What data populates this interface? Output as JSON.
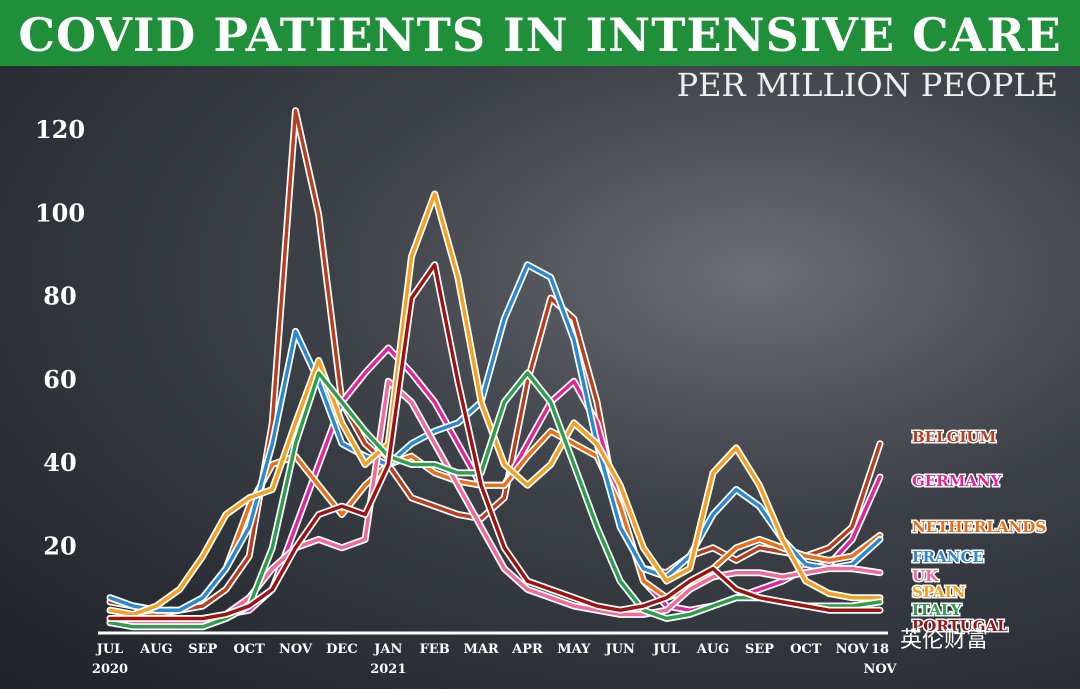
{
  "chart_data": {
    "type": "line",
    "title": "COVID PATIENTS IN INTENSIVE CARE",
    "subtitle": "PER MILLION PEOPLE",
    "watermark": "英伦财富",
    "x": [
      0,
      0.5,
      1,
      1.5,
      2,
      2.5,
      3,
      3.5,
      4,
      4.5,
      5,
      5.5,
      6,
      6.5,
      7,
      7.5,
      8,
      8.5,
      9,
      9.5,
      10,
      10.5,
      11,
      11.5,
      12,
      12.5,
      13,
      13.5,
      14,
      14.5,
      15,
      15.5,
      16,
      16.6
    ],
    "xlim": [
      0,
      16.6
    ],
    "xticks": [
      {
        "value": 0,
        "label": "JUL\n2020"
      },
      {
        "value": 1,
        "label": "AUG"
      },
      {
        "value": 2,
        "label": "SEP"
      },
      {
        "value": 3,
        "label": "OCT"
      },
      {
        "value": 4,
        "label": "NOV"
      },
      {
        "value": 5,
        "label": "DEC"
      },
      {
        "value": 6,
        "label": "JAN\n2021"
      },
      {
        "value": 7,
        "label": "FEB"
      },
      {
        "value": 8,
        "label": "MAR"
      },
      {
        "value": 9,
        "label": "APR"
      },
      {
        "value": 10,
        "label": "MAY"
      },
      {
        "value": 11,
        "label": "JUN"
      },
      {
        "value": 12,
        "label": "JUL"
      },
      {
        "value": 13,
        "label": "AUG"
      },
      {
        "value": 14,
        "label": "SEP"
      },
      {
        "value": 15,
        "label": "OCT"
      },
      {
        "value": 16,
        "label": "NOV"
      },
      {
        "value": 16.6,
        "label": "18\nNOV"
      }
    ],
    "ylim": [
      0,
      130
    ],
    "yticks": [
      20,
      40,
      60,
      80,
      100,
      120
    ],
    "grid": false,
    "series": [
      {
        "name": "BELGIUM",
        "color": "#b5401f",
        "values": [
          7,
          6,
          5,
          5,
          6,
          10,
          18,
          50,
          125,
          100,
          55,
          45,
          40,
          32,
          30,
          28,
          27,
          32,
          60,
          80,
          75,
          55,
          25,
          15,
          14,
          18,
          20,
          17,
          20,
          19,
          18,
          20,
          25,
          45
        ]
      },
      {
        "name": "GERMANY",
        "color": "#e0269c",
        "values": [
          3,
          3,
          3,
          3,
          3,
          4,
          5,
          10,
          25,
          40,
          55,
          62,
          68,
          62,
          55,
          45,
          35,
          35,
          45,
          55,
          60,
          50,
          30,
          12,
          6,
          5,
          6,
          8,
          10,
          12,
          15,
          16,
          22,
          37
        ]
      },
      {
        "name": "NETHERLANDS",
        "color": "#e8701a",
        "values": [
          2,
          3,
          4,
          5,
          8,
          15,
          30,
          40,
          42,
          35,
          28,
          35,
          40,
          42,
          38,
          36,
          35,
          35,
          42,
          48,
          45,
          42,
          30,
          12,
          8,
          10,
          15,
          20,
          22,
          20,
          18,
          17,
          18,
          23
        ]
      },
      {
        "name": "FRANCE",
        "color": "#2a8ad0",
        "values": [
          8,
          6,
          5,
          5,
          8,
          15,
          25,
          45,
          72,
          60,
          45,
          42,
          40,
          45,
          48,
          50,
          55,
          75,
          88,
          85,
          70,
          45,
          25,
          15,
          13,
          18,
          28,
          34,
          30,
          22,
          16,
          15,
          16,
          22
        ]
      },
      {
        "name": "UK",
        "color": "#f06a9a",
        "values": [
          3,
          2,
          2,
          2,
          2,
          4,
          8,
          15,
          20,
          22,
          20,
          22,
          60,
          55,
          45,
          35,
          25,
          15,
          10,
          8,
          6,
          5,
          4,
          4,
          5,
          10,
          13,
          14,
          14,
          13,
          14,
          15,
          15,
          14
        ]
      },
      {
        "name": "SPAIN",
        "color": "#f4a020",
        "values": [
          5,
          4,
          6,
          10,
          18,
          28,
          32,
          34,
          50,
          65,
          50,
          40,
          45,
          90,
          105,
          85,
          55,
          40,
          35,
          40,
          50,
          45,
          35,
          20,
          12,
          15,
          38,
          44,
          35,
          22,
          12,
          9,
          8,
          8
        ]
      },
      {
        "name": "ITALY",
        "color": "#2e9e4e",
        "values": [
          2,
          1,
          1,
          1,
          1,
          3,
          6,
          20,
          45,
          62,
          55,
          48,
          42,
          40,
          40,
          38,
          38,
          55,
          62,
          55,
          40,
          25,
          12,
          5,
          3,
          4,
          6,
          8,
          8,
          7,
          6,
          6,
          6,
          7
        ]
      },
      {
        "name": "PORTUGAL",
        "color": "#9b1414",
        "values": [
          3,
          3,
          3,
          3,
          3,
          4,
          6,
          10,
          20,
          28,
          30,
          28,
          40,
          80,
          88,
          60,
          35,
          20,
          12,
          10,
          8,
          6,
          5,
          6,
          8,
          12,
          15,
          10,
          8,
          7,
          6,
          5,
          5,
          5
        ]
      }
    ]
  }
}
